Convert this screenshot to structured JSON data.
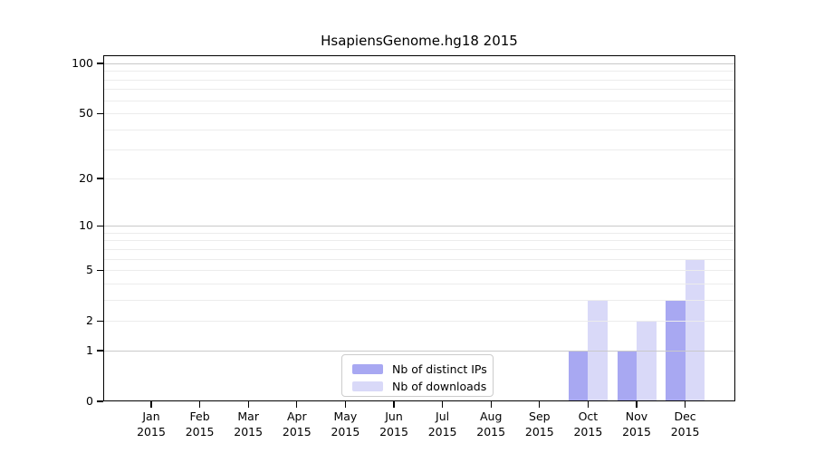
{
  "chart_data": {
    "type": "bar",
    "title": "HsapiensGenome.hg18 2015",
    "categories": [
      "Jan",
      "Feb",
      "Mar",
      "Apr",
      "May",
      "Jun",
      "Jul",
      "Aug",
      "Sep",
      "Oct",
      "Nov",
      "Dec"
    ],
    "category_year": "2015",
    "series": [
      {
        "name": "Nb of distinct IPs",
        "color": "#a8a8f2",
        "values": [
          0,
          0,
          0,
          0,
          0,
          0,
          0,
          0,
          0,
          1,
          1,
          3
        ]
      },
      {
        "name": "Nb of downloads",
        "color": "#d9d9f8",
        "values": [
          0,
          0,
          0,
          0,
          0,
          0,
          0,
          0,
          0,
          3,
          2,
          6
        ]
      }
    ],
    "yscale": "log1p",
    "ylim": [
      0,
      100
    ],
    "ytick_labels": [
      "0",
      "1",
      "2",
      "5",
      "10",
      "20",
      "50",
      "100"
    ],
    "ytick_values": [
      0,
      1,
      2,
      5,
      10,
      20,
      50,
      100
    ],
    "grid": {
      "on": true,
      "major_values": [
        1,
        10,
        100
      ],
      "minor_values": [
        2,
        3,
        4,
        5,
        6,
        7,
        8,
        9,
        20,
        30,
        40,
        50,
        60,
        70,
        80,
        90
      ]
    },
    "legend": {
      "position": "lower-center-inside"
    },
    "colors": {
      "axis": "#000000",
      "grid_major": "#c9c9c9",
      "grid_minor": "#ececec",
      "background": "#ffffff"
    }
  }
}
